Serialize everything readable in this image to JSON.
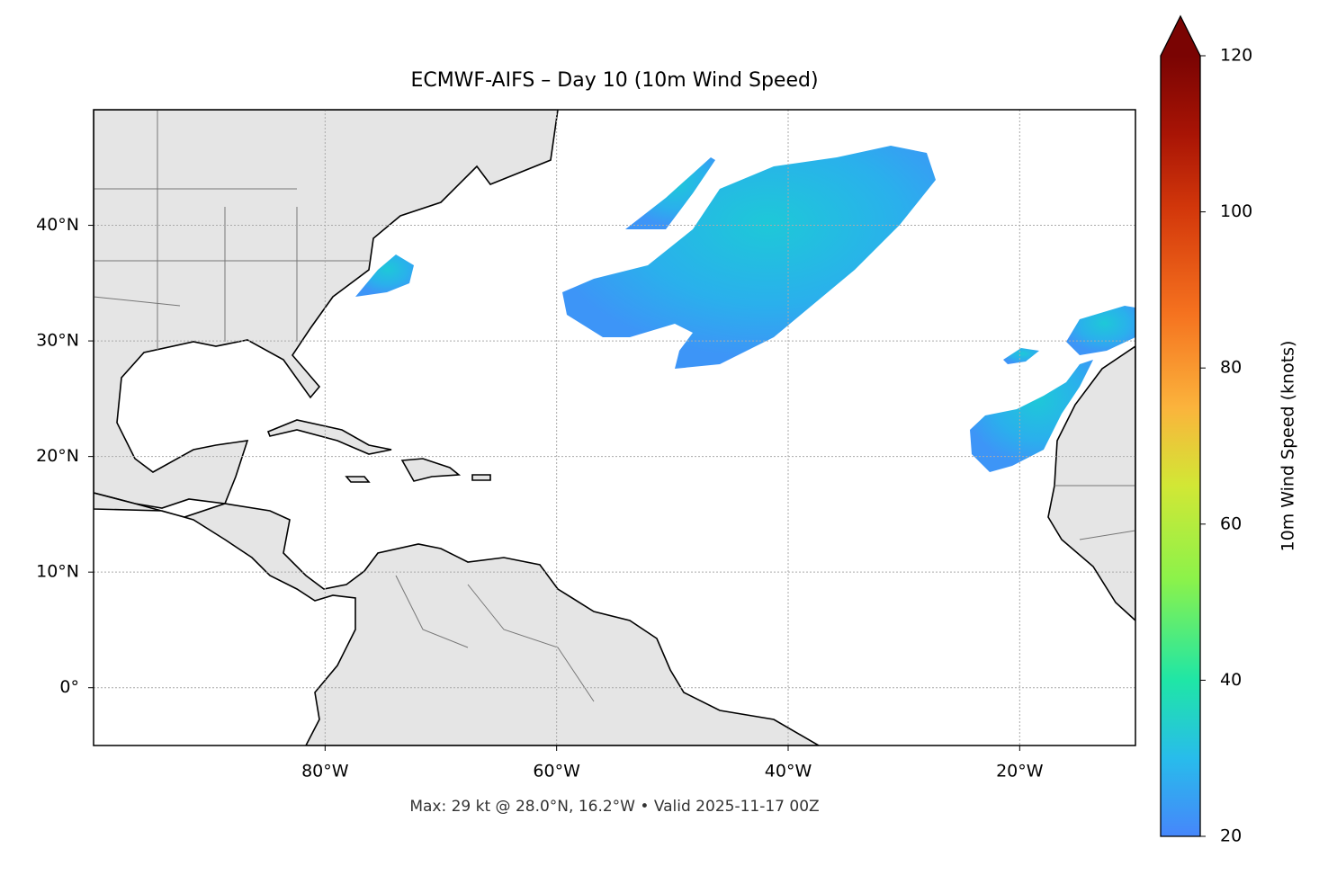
{
  "map": {
    "title": "ECMWF-AIFS – Day 10 (10m Wind Speed)",
    "xlim": [
      -100,
      -10
    ],
    "ylim": [
      -5,
      50
    ],
    "xticks": [
      {
        "value": -80,
        "label": "80°W"
      },
      {
        "value": -60,
        "label": "60°W"
      },
      {
        "value": -40,
        "label": "40°W"
      },
      {
        "value": -20,
        "label": "20°W"
      }
    ],
    "yticks": [
      {
        "value": 0,
        "label": "0°"
      },
      {
        "value": 10,
        "label": "10°N"
      },
      {
        "value": 20,
        "label": "20°N"
      },
      {
        "value": 30,
        "label": "30°N"
      },
      {
        "value": 40,
        "label": "40°N"
      }
    ],
    "grid": true,
    "footnote": "Max: 29 kt @ 28.0°N, 16.2°W • Valid 2025-11-17 00Z",
    "colorbar": {
      "label": "10m Wind Speed (knots)",
      "lim": [
        20,
        120
      ],
      "ticks": [
        20,
        40,
        60,
        80,
        100,
        120
      ]
    }
  }
}
